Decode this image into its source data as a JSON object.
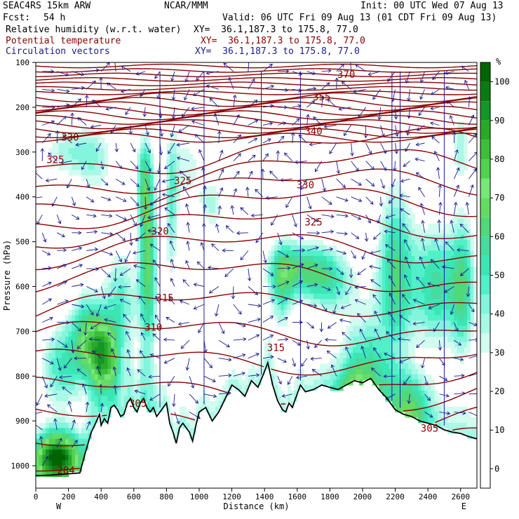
{
  "header": {
    "model": "SEAC4RS 15km ARW",
    "org": "NCAR/MMM",
    "init": "Init: 00 UTC Wed 07 Aug 13",
    "fcst_label": "Fcst:",
    "fcst_value": "54 h",
    "valid": "Valid: 06 UTC Fri 09 Aug 13 (01 CDT Fri 09 Aug 13)",
    "fields": [
      {
        "name": "Relative humidity (w.r.t. water)",
        "xy": "XY=  36.1,187.3 to 175.8, 77.0",
        "color": "#000000"
      },
      {
        "name": "Potential temperature",
        "xy": "XY=  36.1,187.3 to 175.8, 77.0",
        "color": "#8b0000"
      },
      {
        "name": "Circulation vectors",
        "xy": "XY=  36.1,187.3 to 175.8, 77.0",
        "color": "#1a1a8c"
      }
    ]
  },
  "chart_data": {
    "type": "heatmap",
    "xlabel": "Distance (km)",
    "ylabel": "Pressure (hPa)",
    "xlim": [
      0,
      2700
    ],
    "ylim": [
      1050,
      100
    ],
    "x_ticks": [
      0,
      200,
      400,
      600,
      800,
      1000,
      1200,
      1400,
      1600,
      1800,
      2000,
      2200,
      2400,
      2600
    ],
    "y_ticks": [
      100,
      200,
      300,
      400,
      500,
      600,
      700,
      800,
      900,
      1000
    ],
    "x_end_labels": {
      "left": "W",
      "right": "E"
    },
    "colorbar": {
      "unit": "%",
      "labels": [
        100,
        90,
        80,
        70,
        60,
        50,
        40,
        30,
        20,
        10,
        0
      ],
      "levels": [
        {
          "min": 100,
          "max": 105,
          "color": "#006400"
        },
        {
          "min": 95,
          "max": 100,
          "color": "#0a7a14"
        },
        {
          "min": 90,
          "max": 95,
          "color": "#149628"
        },
        {
          "min": 85,
          "max": 90,
          "color": "#28aa28"
        },
        {
          "min": 80,
          "max": 85,
          "color": "#3cbe3c"
        },
        {
          "min": 75,
          "max": 80,
          "color": "#50d250"
        },
        {
          "min": 70,
          "max": 75,
          "color": "#78e678"
        },
        {
          "min": 65,
          "max": 70,
          "color": "#64dc64"
        },
        {
          "min": 60,
          "max": 65,
          "color": "#50d87a"
        },
        {
          "min": 55,
          "max": 60,
          "color": "#46dca0"
        },
        {
          "min": 50,
          "max": 55,
          "color": "#3ce6b4"
        },
        {
          "min": 45,
          "max": 50,
          "color": "#50f0c8"
        },
        {
          "min": 40,
          "max": 45,
          "color": "#82f5dc"
        },
        {
          "min": 35,
          "max": 40,
          "color": "#aaf8e6"
        },
        {
          "min": 30,
          "max": 35,
          "color": "#d2fcf0"
        }
      ]
    },
    "theta_labels": [
      {
        "x": 1900,
        "p": 128,
        "value": "370"
      },
      {
        "x": 1750,
        "p": 178,
        "value": "355"
      },
      {
        "x": 1700,
        "p": 255,
        "value": "340"
      },
      {
        "x": 210,
        "p": 268,
        "value": "330"
      },
      {
        "x": 1650,
        "p": 375,
        "value": "330"
      },
      {
        "x": 120,
        "p": 318,
        "value": "325"
      },
      {
        "x": 900,
        "p": 365,
        "value": "325"
      },
      {
        "x": 1700,
        "p": 458,
        "value": "325"
      },
      {
        "x": 760,
        "p": 478,
        "value": "320"
      },
      {
        "x": 790,
        "p": 627,
        "value": "315"
      },
      {
        "x": 1470,
        "p": 738,
        "value": "315"
      },
      {
        "x": 720,
        "p": 692,
        "value": "310"
      },
      {
        "x": 625,
        "p": 862,
        "value": "305"
      },
      {
        "x": 2410,
        "p": 918,
        "value": "305"
      },
      {
        "x": 185,
        "p": 1012,
        "value": "284"
      }
    ]
  },
  "style": {
    "terrain_color": "#000000",
    "theta_color": "#8b0000",
    "vector_color": "#1a1a8c",
    "axis_color": "#000000"
  }
}
